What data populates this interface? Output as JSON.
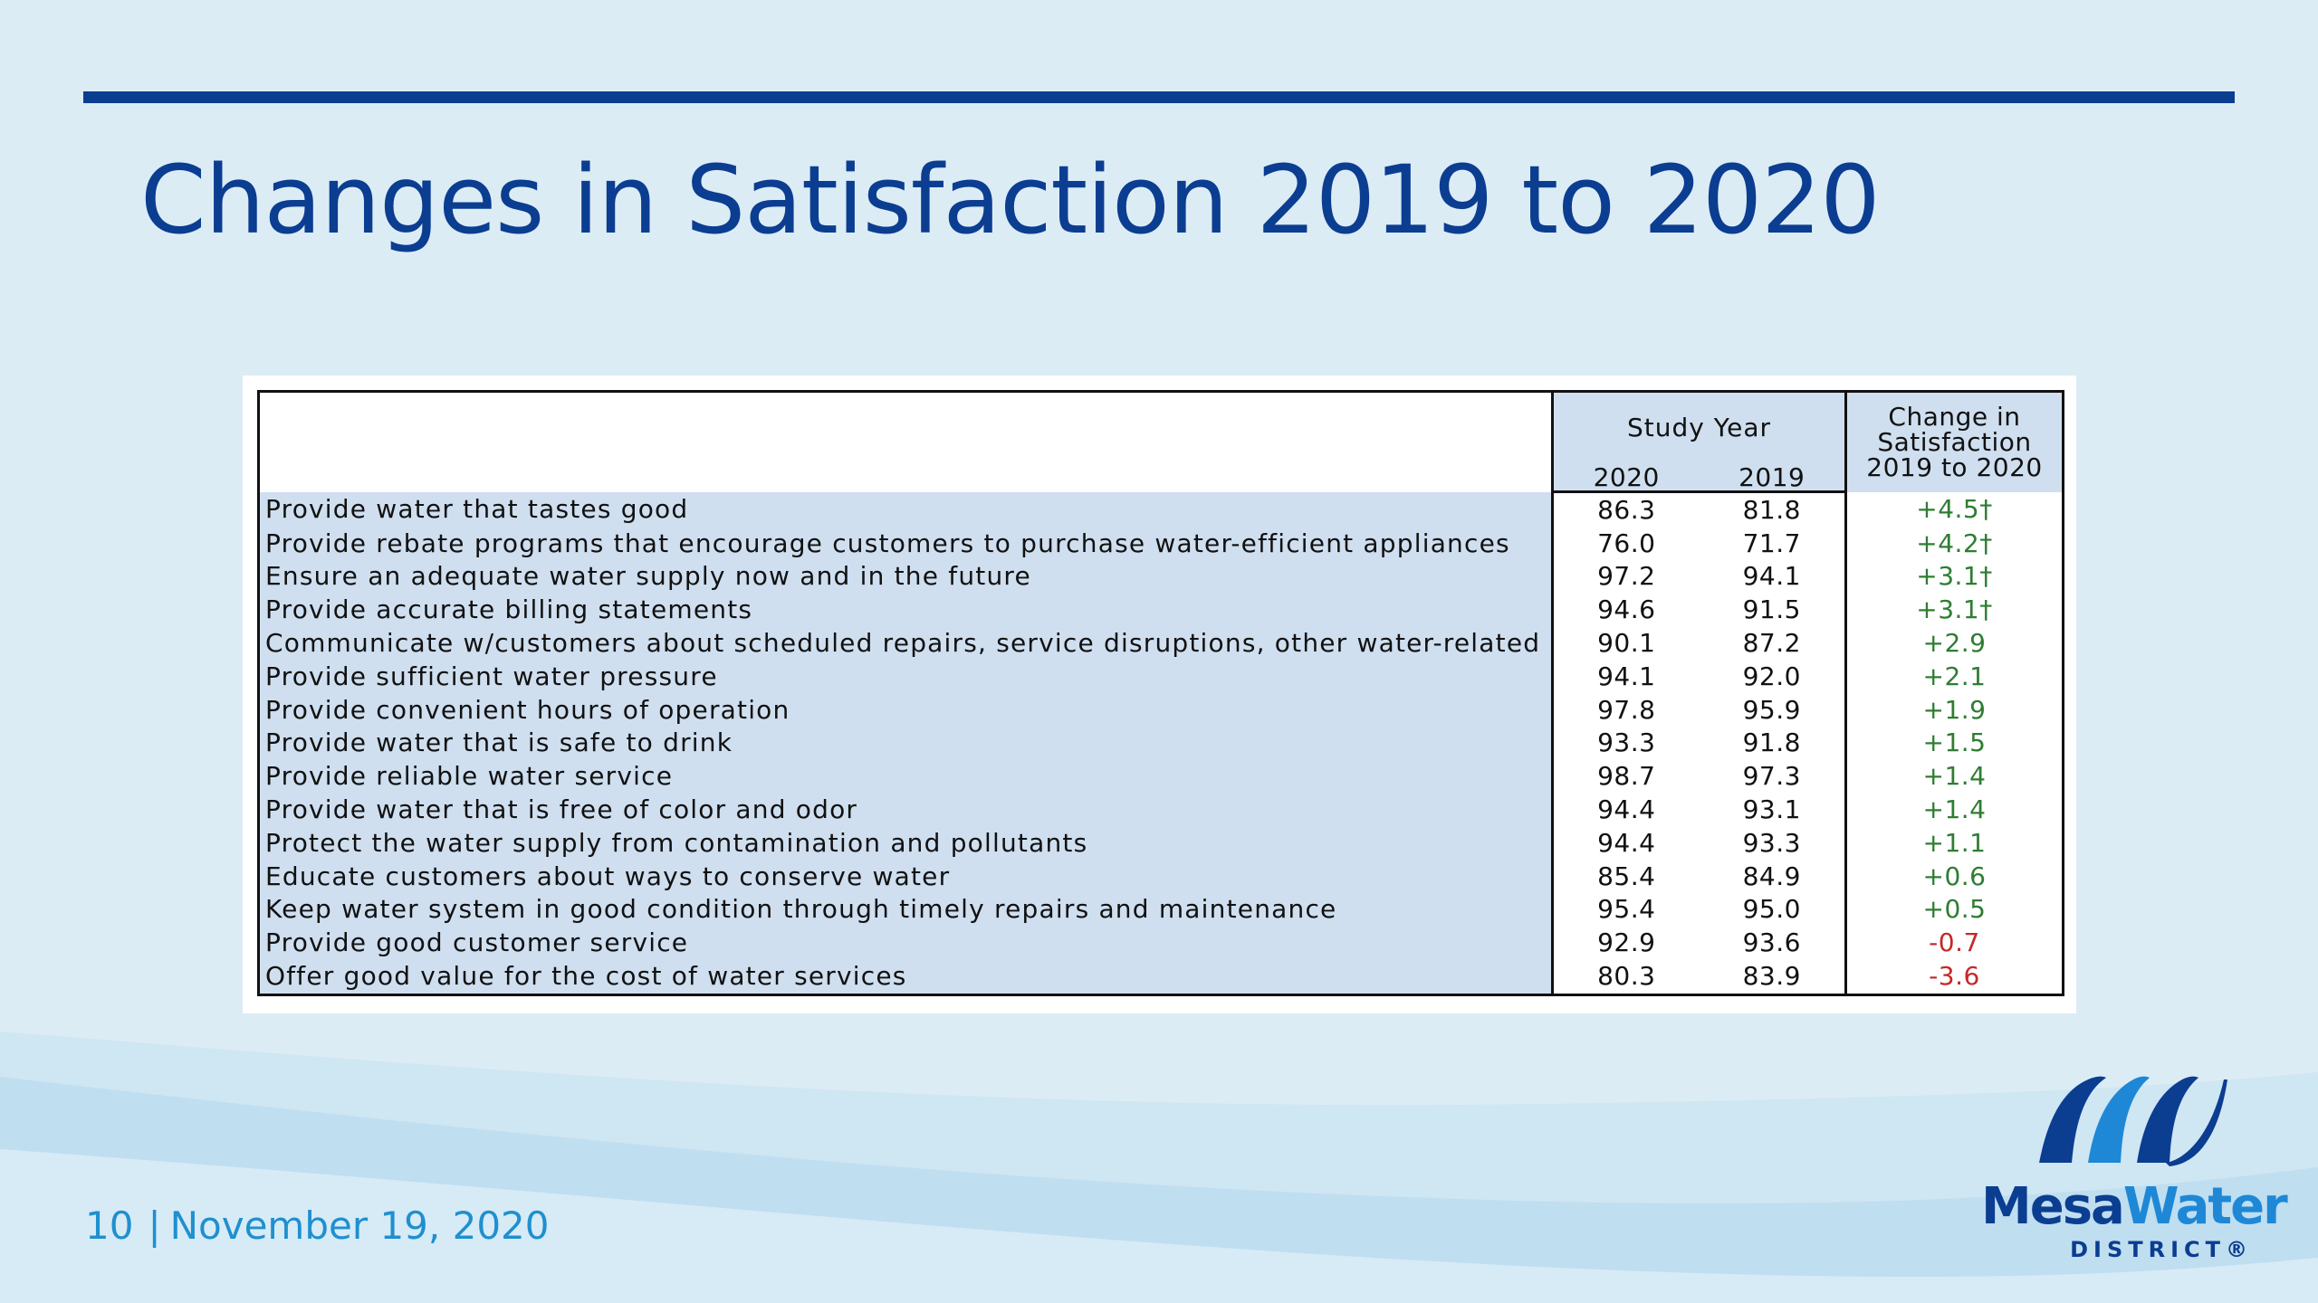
{
  "slide": {
    "title": "Changes in Satisfaction 2019 to 2020",
    "page_number": "10",
    "separator": "|",
    "date": "November 19, 2020"
  },
  "table": {
    "group_header": "Study Year",
    "change_header_lines": [
      "Change in",
      "Satisfaction",
      "2019 to 2020"
    ],
    "year_columns": [
      "2020",
      "2019"
    ],
    "rows": [
      {
        "label": "Provide water that tastes good",
        "y2020": "86.3",
        "y2019": "81.8",
        "change": "+4.5†"
      },
      {
        "label": "Provide rebate programs that encourage customers to purchase water-efficient appliances",
        "y2020": "76.0",
        "y2019": "71.7",
        "change": "+4.2†"
      },
      {
        "label": "Ensure an adequate water supply now and in the future",
        "y2020": "97.2",
        "y2019": "94.1",
        "change": "+3.1†"
      },
      {
        "label": "Provide accurate billing statements",
        "y2020": "94.6",
        "y2019": "91.5",
        "change": "+3.1†"
      },
      {
        "label": "Communicate w/customers about scheduled repairs, service disruptions, other water-related issues",
        "y2020": "90.1",
        "y2019": "87.2",
        "change": "+2.9"
      },
      {
        "label": "Provide sufficient water pressure",
        "y2020": "94.1",
        "y2019": "92.0",
        "change": "+2.1"
      },
      {
        "label": "Provide convenient hours of operation",
        "y2020": "97.8",
        "y2019": "95.9",
        "change": "+1.9"
      },
      {
        "label": "Provide water that is safe to drink",
        "y2020": "93.3",
        "y2019": "91.8",
        "change": "+1.5"
      },
      {
        "label": "Provide reliable water service",
        "y2020": "98.7",
        "y2019": "97.3",
        "change": "+1.4"
      },
      {
        "label": "Provide water that is free of color and odor",
        "y2020": "94.4",
        "y2019": "93.1",
        "change": "+1.4"
      },
      {
        "label": "Protect the water supply from contamination and pollutants",
        "y2020": "94.4",
        "y2019": "93.3",
        "change": "+1.1"
      },
      {
        "label": "Educate customers about ways to conserve water",
        "y2020": "85.4",
        "y2019": "84.9",
        "change": "+0.6"
      },
      {
        "label": "Keep water system in good condition through timely repairs and maintenance",
        "y2020": "95.4",
        "y2019": "95.0",
        "change": "+0.5"
      },
      {
        "label": "Provide good customer service",
        "y2020": "92.9",
        "y2019": "93.6",
        "change": "-0.7"
      },
      {
        "label": "Offer good value for the cost of water services",
        "y2020": "80.3",
        "y2019": "83.9",
        "change": "-3.6"
      }
    ]
  },
  "logo": {
    "name_part1": "Mesa",
    "name_part2": "Water",
    "subtitle": "DISTRICT®",
    "icon": "mesa-water-wave-mark"
  },
  "colors": {
    "brand_navy": "#0b3d91",
    "brand_blue": "#1e88d6",
    "footer_text": "#1f8fcf",
    "table_fill": "#cfdff0",
    "positive_change": "#2e7d32",
    "negative_change": "#c62828",
    "background": "#dfeef6"
  }
}
